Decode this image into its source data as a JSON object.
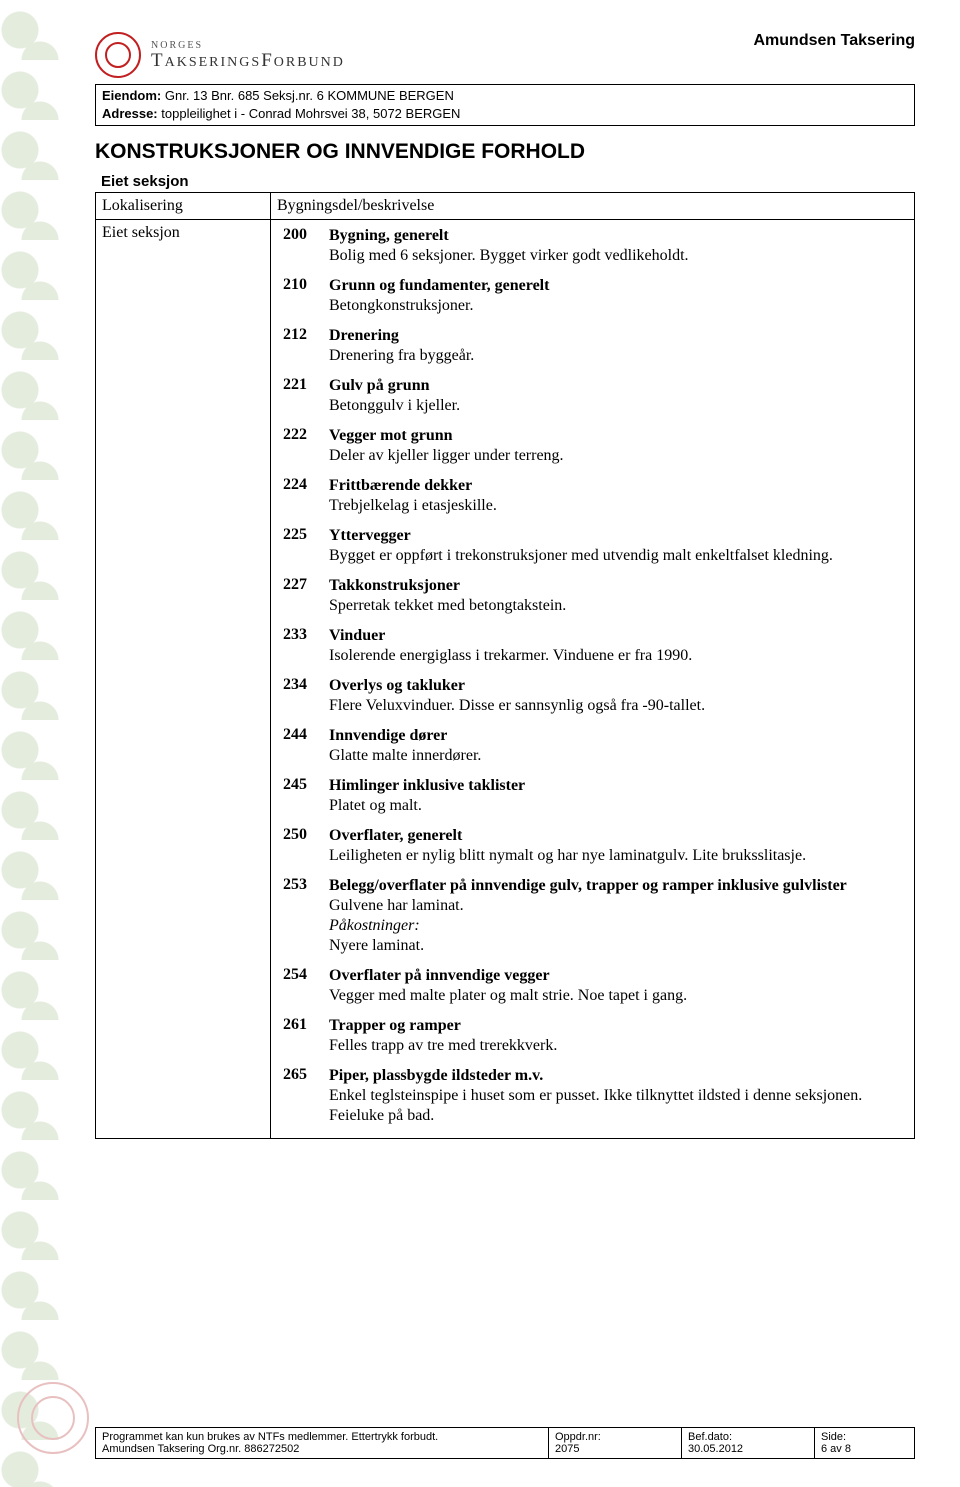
{
  "header": {
    "logo_line1": "NORGES",
    "logo_line2": "TAKSERINGSFORBUND",
    "company": "Amundsen Taksering"
  },
  "meta": {
    "eiendom_label": "Eiendom:",
    "eiendom_value": "Gnr. 13  Bnr. 685  Seksj.nr. 6  KOMMUNE BERGEN",
    "adresse_label": "Adresse:",
    "adresse_value": "toppleilighet i - Conrad Mohrsvei 38, 5072 BERGEN"
  },
  "section_title": "KONSTRUKSJONER OG INNVENDIGE FORHOLD",
  "subheader_left": "Eiet seksjon",
  "left_col_top": "Lokalisering",
  "left_col_body": "Eiet seksjon",
  "right_col_top": "Bygningsdel/beskrivelse",
  "items": [
    {
      "code": "200",
      "label": "Bygning, generelt",
      "desc": "Bolig med 6 seksjoner. Bygget virker godt vedlikeholdt."
    },
    {
      "code": "210",
      "label": "Grunn og fundamenter, generelt",
      "desc": "Betongkonstruksjoner."
    },
    {
      "code": "212",
      "label": "Drenering",
      "desc": "Drenering fra byggeår."
    },
    {
      "code": "221",
      "label": "Gulv på grunn",
      "desc": "Betonggulv i kjeller."
    },
    {
      "code": "222",
      "label": "Vegger mot grunn",
      "desc": "Deler av kjeller ligger under terreng."
    },
    {
      "code": "224",
      "label": "Frittbærende dekker",
      "desc": "Trebjelkelag i etasjeskille."
    },
    {
      "code": "225",
      "label": "Yttervegger",
      "desc": "Bygget er oppført i trekonstruksjoner med utvendig malt enkeltfalset kledning."
    },
    {
      "code": "227",
      "label": "Takkonstruksjoner",
      "desc": "Sperretak tekket med betongtakstein."
    },
    {
      "code": "233",
      "label": "Vinduer",
      "desc": "Isolerende energiglass i trekarmer. Vinduene er fra 1990."
    },
    {
      "code": "234",
      "label": "Overlys og takluker",
      "desc": "Flere Veluxvinduer. Disse er sannsynlig også fra -90-tallet."
    },
    {
      "code": "244",
      "label": "Innvendige dører",
      "desc": "Glatte malte innerdører."
    },
    {
      "code": "245",
      "label": "Himlinger inklusive taklister",
      "desc": "Platet og malt."
    },
    {
      "code": "250",
      "label": "Overflater, generelt",
      "desc": "Leiligheten er nylig blitt nymalt og har nye laminatgulv. Lite bruksslitasje."
    },
    {
      "code": "253",
      "label": "Belegg/overflater på innvendige gulv, trapper og ramper inklusive gulvlister",
      "desc": "Gulvene har laminat.",
      "note": "Påkostninger:",
      "desc2": "Nyere laminat."
    },
    {
      "code": "254",
      "label": "Overflater på innvendige vegger",
      "desc": "Vegger med malte plater og malt strie. Noe tapet i gang."
    },
    {
      "code": "261",
      "label": "Trapper og ramper",
      "desc": "Felles trapp av tre med trerekkverk."
    },
    {
      "code": "265",
      "label": "Piper, plassbygde ildsteder m.v.",
      "desc": "Enkel teglsteinspipe i huset som er pusset. Ikke tilknyttet ildsted i denne seksjonen. Feieluke på bad."
    }
  ],
  "footer": {
    "line1": "Programmet kan kun brukes av NTFs medlemmer. Ettertrykk forbudt.",
    "line2": "Amundsen Taksering  Org.nr. 886272502",
    "oppdr_label": "Oppdr.nr:",
    "oppdr_value": "2075",
    "bef_label": "Bef.dato:",
    "bef_value": "30.05.2012",
    "side_label": "Side:",
    "side_value": "6 av 8"
  }
}
